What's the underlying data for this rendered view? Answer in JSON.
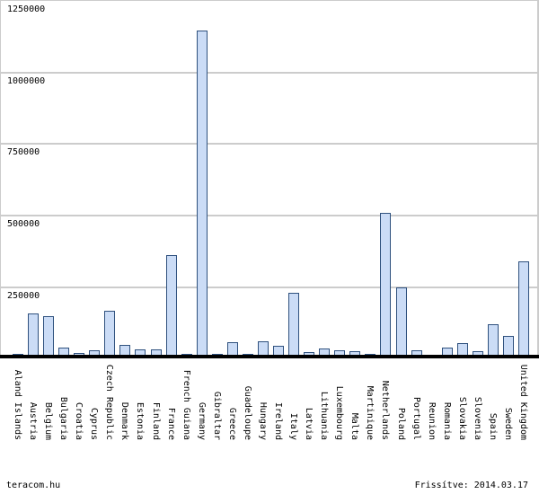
{
  "footer": {
    "left_text": "teracom.hu",
    "right_text": "Frissítve: 2014.03.17"
  },
  "chart_data": {
    "type": "bar",
    "title": "",
    "xlabel": "",
    "ylabel": "",
    "ylim": [
      0,
      1250000
    ],
    "ytick_interval": 250000,
    "ytick_labels": [
      "250000",
      "500000",
      "750000",
      "1000000",
      "1250000"
    ],
    "grid": true,
    "legend": false,
    "categories": [
      "Aland Islands",
      "Austria",
      "Belgium",
      "Bulgaria",
      "Croatia",
      "Cyprus",
      "Czech Republic",
      "Denmark",
      "Estonia",
      "Finland",
      "France",
      "French Guiana",
      "Germany",
      "Gibraltar",
      "Greece",
      "Guadeloupe",
      "Hungary",
      "Ireland",
      "Italy",
      "Latvia",
      "Lithuania",
      "Luxembourg",
      "Malta",
      "Martinique",
      "Netherlands",
      "Poland",
      "Portugal",
      "Reunion",
      "Romania",
      "Slovakia",
      "Slovenia",
      "Spain",
      "Sweden",
      "United Kingdom"
    ],
    "values": [
      15000,
      155000,
      146000,
      37000,
      18000,
      26000,
      164000,
      46000,
      30000,
      31000,
      357000,
      13000,
      1140000,
      13000,
      56000,
      13000,
      58000,
      42000,
      226000,
      19000,
      32000,
      28000,
      24000,
      14000,
      507000,
      247000,
      27000,
      12000,
      35000,
      51000,
      22000,
      118000,
      78000,
      336000
    ],
    "colors": {
      "bar_fill": "#cbdcf6",
      "bar_border": "#2f517e",
      "gridline": "#cccccc",
      "axis": "#000000",
      "text": "#000000",
      "plot_border": "#cccccc"
    }
  }
}
